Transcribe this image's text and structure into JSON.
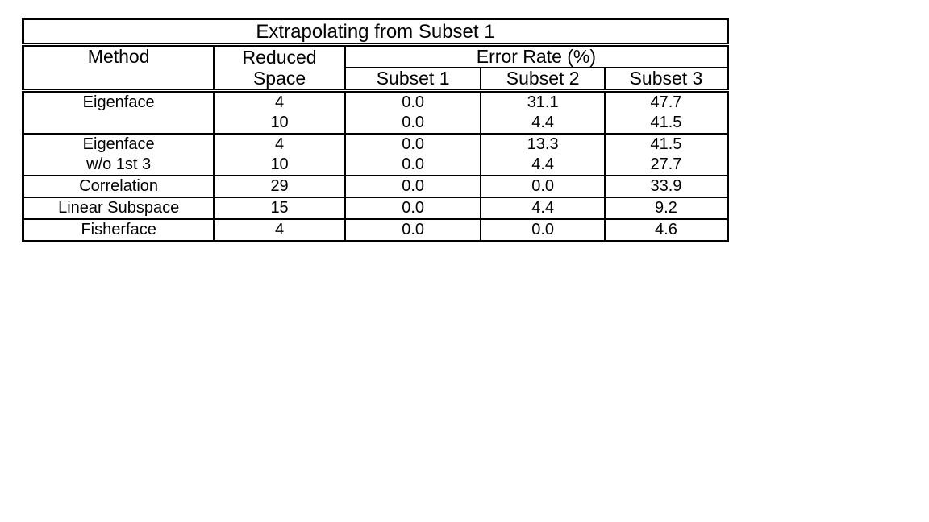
{
  "table": {
    "title": "Extrapolating from Subset 1",
    "headers": {
      "method": "Method",
      "reduced_space_line1": "Reduced",
      "reduced_space_line2": "Space",
      "error_rate": "Error Rate (%)",
      "subset1": "Subset 1",
      "subset2": "Subset 2",
      "subset3": "Subset 3"
    },
    "rows": [
      {
        "method_lines": [
          "Eigenface",
          ""
        ],
        "reduced_space": [
          "4",
          "10"
        ],
        "subset1": [
          "0.0",
          "0.0"
        ],
        "subset2": [
          "31.1",
          "4.4"
        ],
        "subset3": [
          "47.7",
          "41.5"
        ]
      },
      {
        "method_lines": [
          "Eigenface",
          "w/o 1st 3"
        ],
        "reduced_space": [
          "4",
          "10"
        ],
        "subset1": [
          "0.0",
          "0.0"
        ],
        "subset2": [
          "13.3",
          "4.4"
        ],
        "subset3": [
          "41.5",
          "27.7"
        ]
      },
      {
        "method_lines": [
          "Correlation"
        ],
        "reduced_space": [
          "29"
        ],
        "subset1": [
          "0.0"
        ],
        "subset2": [
          "0.0"
        ],
        "subset3": [
          "33.9"
        ]
      },
      {
        "method_lines": [
          "Linear Subspace"
        ],
        "reduced_space": [
          "15"
        ],
        "subset1": [
          "0.0"
        ],
        "subset2": [
          "4.4"
        ],
        "subset3": [
          "9.2"
        ]
      },
      {
        "method_lines": [
          "Fisherface"
        ],
        "reduced_space": [
          "4"
        ],
        "subset1": [
          "0.0"
        ],
        "subset2": [
          "0.0"
        ],
        "subset3": [
          "4.6"
        ]
      }
    ]
  }
}
